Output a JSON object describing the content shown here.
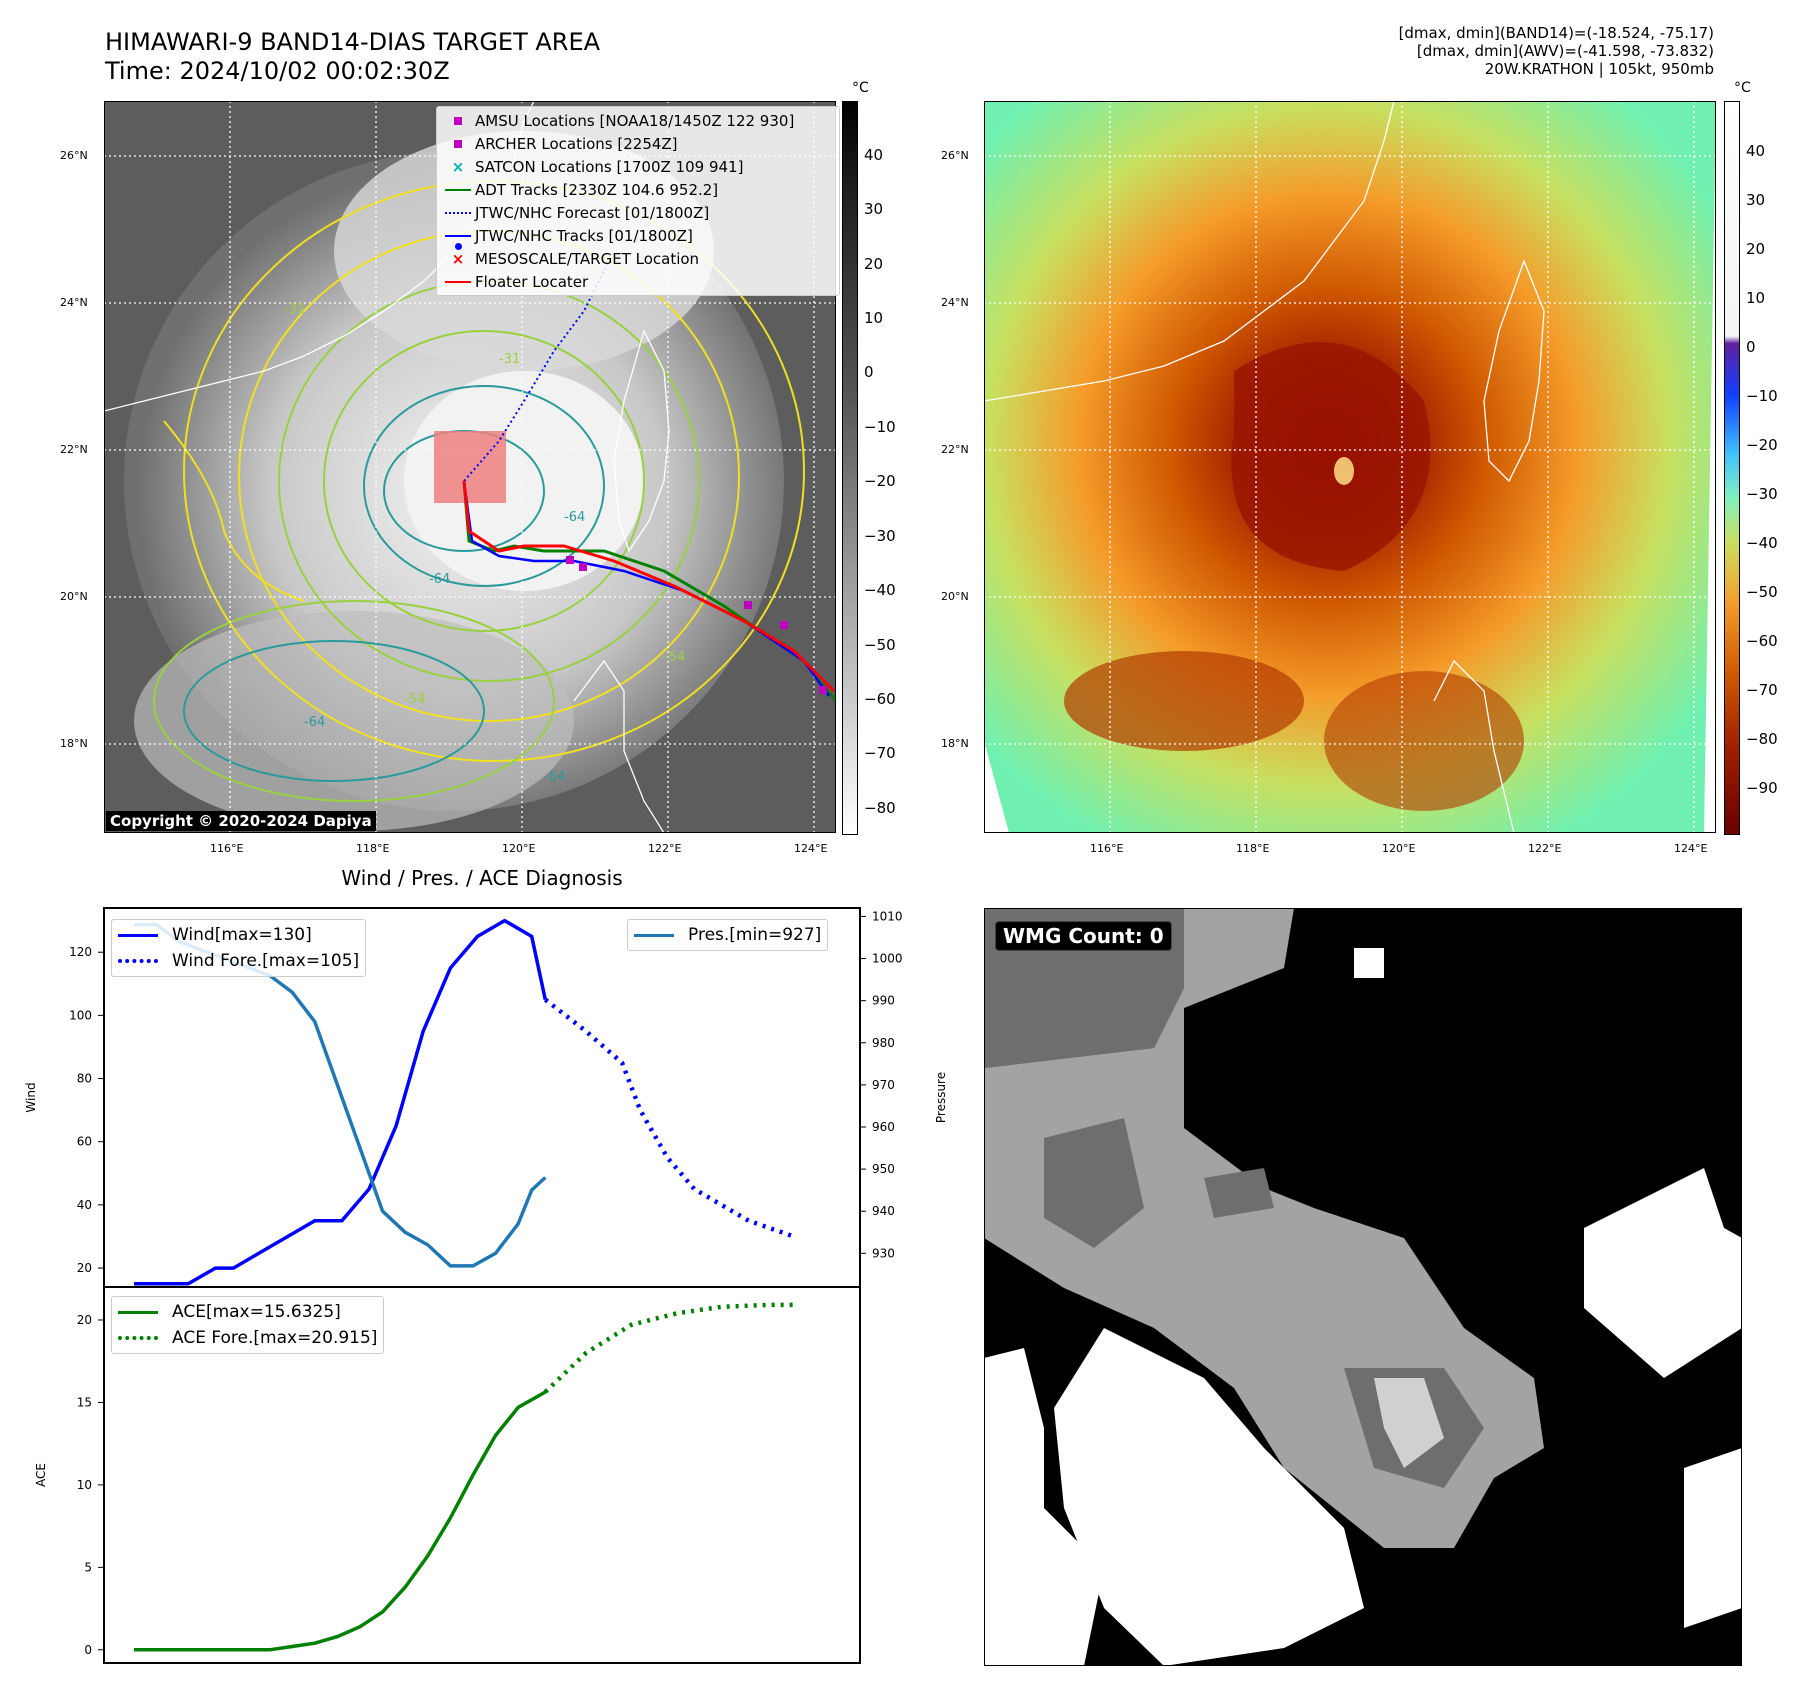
{
  "top_left": {
    "title_line1": "HIMAWARI-9 BAND14-DIAS TARGET AREA",
    "title_line2": "Time: 2024/10/02 00:02:30Z",
    "unit": "°C",
    "copyright": "Copyright © 2020-2024 Dapiya",
    "lat_labels": [
      "26°N",
      "24°N",
      "22°N",
      "20°N",
      "18°N"
    ],
    "lon_labels": [
      "116°E",
      "118°E",
      "120°E",
      "122°E",
      "124°E"
    ],
    "colorbar_ticks": [
      "40",
      "30",
      "20",
      "10",
      "0",
      "−10",
      "−20",
      "−30",
      "−40",
      "−50",
      "−60",
      "−70",
      "−80"
    ],
    "contour_labels": [
      "-31",
      "-31",
      "-64",
      "-64",
      "-64",
      "-54",
      "-54",
      "-64"
    ],
    "legend": [
      {
        "label": "AMSU Locations [NOAA18/1450Z 122 930]",
        "color": "#c000c0",
        "symbol": "square"
      },
      {
        "label": "ARCHER Locations [2254Z]",
        "color": "#c000c0",
        "symbol": "square"
      },
      {
        "label": "SATCON Locations [1700Z 109 941]",
        "color": "#00b0b0",
        "symbol": "x"
      },
      {
        "label": "ADT Tracks [2330Z 104.6 952.2]",
        "color": "#008000",
        "symbol": "line"
      },
      {
        "label": "JTWC/NHC Forecast [01/1800Z]",
        "color": "#0000ff",
        "symbol": "dotted"
      },
      {
        "label": "JTWC/NHC Tracks [01/1800Z]",
        "color": "#0000ff",
        "symbol": "line-dot"
      },
      {
        "label": "MESOSCALE/TARGET Location",
        "color": "#ff0000",
        "symbol": "x"
      },
      {
        "label": "Floater Locater",
        "color": "#ff0000",
        "symbol": "line"
      }
    ]
  },
  "top_right": {
    "header_line1": "[dmax, dmin](BAND14)=(-18.524, -75.17)",
    "header_line2": "[dmax, dmin](AWV)=(-41.598, -73.832)",
    "header_line3": "20W.KRATHON | 105kt, 950mb",
    "unit": "°C",
    "lat_labels": [
      "26°N",
      "24°N",
      "22°N",
      "20°N",
      "18°N"
    ],
    "lon_labels": [
      "116°E",
      "118°E",
      "120°E",
      "122°E",
      "124°E"
    ],
    "colorbar_ticks": [
      "40",
      "30",
      "20",
      "10",
      "0",
      "−10",
      "−20",
      "−30",
      "−40",
      "−50",
      "−60",
      "−70",
      "−80",
      "−90"
    ]
  },
  "bottom_right": {
    "badge": "WMG Count: 0"
  },
  "colors": {
    "wind": "#0000ff",
    "pressure": "#1f77b4",
    "ace": "#008000",
    "floater_box": "#f08080"
  },
  "chart_data": [
    {
      "type": "line",
      "title": "Wind / Pres. / ACE Diagnosis",
      "ylabel": "Wind",
      "ylabel_right": "Pressure",
      "ylim": [
        14,
        134
      ],
      "ylim_right": [
        922,
        1012
      ],
      "yticks": [
        20,
        40,
        60,
        80,
        100,
        120
      ],
      "yticks_right": [
        930,
        940,
        950,
        960,
        970,
        980,
        990,
        1000,
        1010
      ],
      "x": [
        0,
        1,
        2,
        3,
        4,
        5,
        6,
        7,
        8,
        9,
        10,
        11,
        12,
        13,
        14,
        15,
        16,
        17,
        18,
        19,
        20,
        21,
        22,
        23,
        24,
        25,
        26,
        27,
        28,
        29,
        30,
        31,
        32,
        33,
        34,
        35,
        36,
        37,
        38,
        39,
        40,
        41,
        42,
        43,
        44,
        45,
        46,
        47,
        48,
        49,
        50,
        51,
        52,
        53,
        54,
        55,
        56,
        57,
        58,
        59,
        60,
        61,
        62,
        63,
        64,
        65,
        66,
        67,
        68,
        69,
        70,
        71,
        72,
        73,
        74,
        75,
        76,
        77,
        78,
        79,
        80,
        81,
        82,
        83,
        84,
        85,
        86,
        87,
        88,
        89,
        90,
        91,
        92,
        93,
        94,
        95,
        96,
        97,
        98,
        99,
        100,
        101,
        102,
        103,
        104,
        105,
        106,
        107,
        108,
        109,
        110,
        111,
        112,
        113,
        114,
        115,
        116,
        117,
        118,
        119,
        120,
        121,
        122,
        123,
        124,
        125,
        126,
        127,
        128,
        129,
        130,
        131,
        132,
        133,
        134,
        135,
        136,
        137,
        138,
        139,
        140,
        141,
        142,
        143,
        144,
        145,
        146,
        147,
        148,
        149,
        150,
        151,
        152,
        153,
        154,
        155,
        156,
        157,
        158,
        159,
        160,
        161,
        162,
        163,
        164,
        165,
        166,
        167,
        168,
        169,
        170,
        171,
        172,
        173,
        174,
        175,
        176,
        177,
        178,
        179,
        180,
        181,
        182,
        183,
        184,
        185,
        186,
        187,
        188,
        189,
        190,
        191,
        192,
        193,
        194,
        195,
        196,
        197,
        198,
        199,
        200,
        201,
        202,
        203,
        204,
        205,
        206,
        207,
        208,
        209,
        210,
        211,
        212,
        213,
        214,
        215,
        216,
        217,
        218,
        219,
        220,
        221,
        222,
        223,
        224,
        225,
        226,
        227,
        228,
        229,
        230,
        231,
        232,
        233,
        234,
        235,
        236,
        237,
        238,
        239,
        240,
        241,
        242,
        243,
        244,
        245,
        246,
        247,
        248,
        249,
        250,
        251,
        252,
        253,
        254,
        255,
        256,
        257,
        258,
        259,
        260,
        261,
        262,
        263,
        264,
        265,
        266,
        267,
        268,
        269,
        270,
        271,
        272,
        273,
        274,
        275,
        276,
        277,
        278,
        279,
        280,
        281,
        282,
        283,
        284,
        285,
        286,
        287,
        288,
        289,
        290,
        291,
        292,
        293,
        294,
        295,
        296,
        297,
        298,
        299,
        300,
        301,
        302,
        303,
        304,
        305,
        306,
        307,
        308,
        309,
        310,
        311,
        312,
        313,
        314,
        315,
        316,
        317,
        318,
        319,
        320,
        321,
        322,
        323,
        324,
        325,
        326,
        327,
        328,
        329,
        330,
        331,
        332,
        333,
        334,
        335,
        336,
        337,
        338,
        339,
        340,
        341,
        342,
        343,
        344,
        345,
        346,
        347,
        348,
        349,
        350,
        351,
        352,
        353,
        354,
        355,
        356,
        357,
        358,
        359,
        360,
        361,
        362,
        363,
        364,
        365,
        366,
        367,
        368,
        369,
        370,
        371,
        372,
        373,
        374,
        375,
        376,
        377,
        378,
        379,
        380,
        381,
        382,
        383,
        384,
        385,
        386,
        387,
        388,
        389,
        390,
        391,
        392,
        393,
        394,
        395,
        396,
        397,
        398,
        399,
        400
      ],
      "series": [
        {
          "name": "Wind[max=130]",
          "axis": "left",
          "style": "solid",
          "x": [
            0,
            12,
            18,
            22,
            28,
            34,
            40,
            46,
            52,
            58,
            64,
            70,
            76,
            82,
            88,
            91
          ],
          "values": [
            15,
            15,
            20,
            20,
            25,
            30,
            35,
            35,
            45,
            65,
            95,
            115,
            125,
            130,
            125,
            105
          ]
        },
        {
          "name": "Wind Fore.[max=105]",
          "axis": "left",
          "style": "dotted",
          "x": [
            91,
            100,
            108,
            112,
            118,
            124,
            130,
            136,
            146
          ],
          "values": [
            105,
            95,
            85,
            70,
            55,
            45,
            40,
            35,
            30
          ]
        },
        {
          "name": "Pres.[min=927]",
          "axis": "right",
          "style": "solid",
          "x": [
            0,
            5,
            10,
            15,
            20,
            25,
            30,
            35,
            40,
            45,
            50,
            55,
            60,
            65,
            70,
            75,
            80,
            85,
            88,
            91
          ],
          "values": [
            1008,
            1008,
            1004,
            1002,
            1000,
            998,
            996,
            992,
            985,
            970,
            955,
            940,
            935,
            932,
            927,
            927,
            930,
            937,
            945,
            948
          ]
        }
      ]
    },
    {
      "type": "line",
      "ylabel": "ACE",
      "ylim": [
        -0.8,
        22
      ],
      "yticks": [
        0,
        5,
        10,
        15,
        20
      ],
      "series": [
        {
          "name": "ACE[max=15.6325]",
          "style": "solid",
          "x": [
            0,
            10,
            20,
            30,
            35,
            40,
            45,
            50,
            55,
            60,
            65,
            70,
            75,
            80,
            85,
            91
          ],
          "values": [
            0,
            0,
            0,
            0,
            0.2,
            0.4,
            0.8,
            1.4,
            2.3,
            3.8,
            5.7,
            8.0,
            10.6,
            13.0,
            14.7,
            15.6325
          ]
        },
        {
          "name": "ACE Fore.[max=20.915]",
          "style": "dotted",
          "x": [
            91,
            100,
            110,
            120,
            130,
            140,
            146
          ],
          "values": [
            15.6325,
            18.0,
            19.7,
            20.4,
            20.8,
            20.915,
            20.915
          ]
        }
      ]
    }
  ]
}
